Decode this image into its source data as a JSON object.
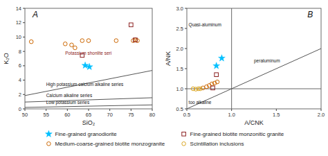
{
  "chart_data": [
    {
      "type": "scatter",
      "title": "A",
      "xlabel": "SiO₂",
      "ylabel": "K₂O",
      "xlim": [
        50,
        80
      ],
      "ylim": [
        0,
        14
      ],
      "xticks": [
        50,
        55,
        60,
        65,
        70,
        75,
        80
      ],
      "yticks": [
        0,
        2,
        4,
        6,
        8,
        10,
        12,
        14
      ],
      "grid": false,
      "series": [
        {
          "type": "line",
          "x": [
            50,
            80
          ],
          "values": [
            1.85,
            5.35
          ]
        },
        {
          "type": "line",
          "x": [
            50,
            80
          ],
          "values": [
            0.95,
            1.55
          ]
        },
        {
          "type": "line",
          "x": [
            50,
            80
          ],
          "values": [
            0.2,
            0.55
          ]
        },
        {
          "type": "scatter",
          "color": "#00BFFF",
          "marker": "star",
          "x": [
            64.2,
            65.2
          ],
          "values": [
            6.05,
            5.85
          ]
        },
        {
          "type": "scatter",
          "color": "#cc6600",
          "marker": "open-circle",
          "x": [
            51.5,
            59.5,
            61.0,
            61.8,
            63.5,
            65.0,
            71.5,
            75.5,
            76.0,
            76.5
          ],
          "values": [
            9.35,
            9.05,
            8.9,
            8.5,
            9.5,
            9.5,
            9.5,
            9.5,
            9.6,
            9.5
          ]
        },
        {
          "type": "scatter",
          "color": "#8B2020",
          "marker": "open-square",
          "x": [
            63.5,
            75.0,
            76.0
          ],
          "values": [
            7.45,
            11.7,
            9.6
          ]
        }
      ],
      "annotations": [
        {
          "text": "High potassium calcium alkaline series",
          "x": 55,
          "y": 3.2
        },
        {
          "text": "Calcium alkaline series",
          "x": 55,
          "y": 1.65
        },
        {
          "text": "Low potassium series",
          "x": 55,
          "y": 0.65
        },
        {
          "text": "Potassium shonlite seri",
          "x": 59.5,
          "y": 7.5,
          "color": "#8B2020"
        }
      ]
    },
    {
      "type": "scatter",
      "title": "B",
      "xlabel": "A/CNK",
      "ylabel": "A/NK",
      "xlim": [
        0.5,
        2.0
      ],
      "ylim": [
        0.5,
        3.0
      ],
      "xticks": [
        0.5,
        {
          "value": 1.0,
          "label": "1.0"
        },
        1.5,
        {
          "value": 2.0,
          "label": "2.0"
        }
      ],
      "yticks": [
        0.5,
        {
          "value": 1.0,
          "label": "1.0"
        },
        1.5,
        {
          "value": 2.0,
          "label": "2.0"
        },
        2.5,
        {
          "value": 3.0,
          "label": "3.0"
        }
      ],
      "grid": false,
      "legend": "bottom",
      "vlines": [
        1.0
      ],
      "hlines": [
        1.0
      ],
      "series": [
        {
          "type": "line",
          "x": [
            0.5,
            2.0
          ],
          "values": [
            0.5,
            2.0
          ]
        },
        {
          "type": "scatter",
          "name": "Fine-grained granodiorite",
          "color": "#00BFFF",
          "marker": "star",
          "x": [
            0.83,
            0.89
          ],
          "values": [
            1.57,
            1.76
          ]
        },
        {
          "type": "scatter",
          "name": "Medium-coarse-grained biotite monzogranite",
          "color": "#cc6600",
          "marker": "open-circle",
          "x": [
            0.68,
            0.72,
            0.75,
            0.78,
            0.81,
            0.84
          ],
          "values": [
            1.02,
            1.05,
            1.08,
            1.12,
            1.14,
            1.17
          ]
        },
        {
          "type": "scatter",
          "name": "Fine-grained biotite monzonitic granite",
          "color": "#8B2020",
          "marker": "open-square",
          "x": [
            0.79,
            0.83
          ],
          "values": [
            1.02,
            1.35
          ]
        },
        {
          "type": "scatter",
          "name": "Scintillation inclusions",
          "color": "#DAA520",
          "marker": "open-circle",
          "x": [
            0.57,
            0.6,
            0.63,
            0.65
          ],
          "values": [
            1.0,
            0.99,
            1.0,
            1.0
          ]
        }
      ],
      "annotations": [
        {
          "text": "Quasi-aluminum",
          "x": 0.52,
          "y": 2.55
        },
        {
          "text": "peraluminum",
          "x": 1.25,
          "y": 1.65
        },
        {
          "text": "too alkaline",
          "x": 0.52,
          "y": 0.62
        }
      ]
    }
  ]
}
